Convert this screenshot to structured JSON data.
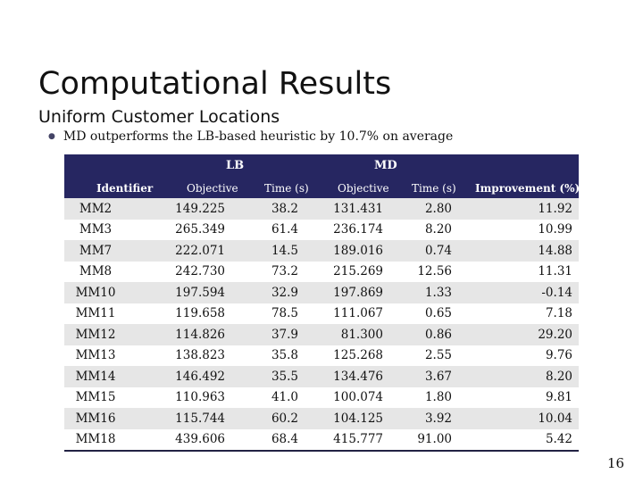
{
  "slide": {
    "title": "Computational Results",
    "subtitle": "Uniform Customer Locations",
    "bullet": "MD outperforms the LB-based heuristic by 10.7% on average",
    "page_number": "16"
  },
  "table": {
    "group_headers": {
      "lb": "LB",
      "md": "MD"
    },
    "columns": {
      "identifier": "Identifier",
      "lb_objective": "Objective",
      "lb_time": "Time (s)",
      "md_objective": "Objective",
      "md_time": "Time (s)",
      "improvement": "Improvement (%)"
    },
    "rows": [
      {
        "id": "MM2",
        "lb_obj": "149.225",
        "lb_time": "38.2",
        "md_obj": "131.431",
        "md_time": "2.80",
        "imp": "11.92"
      },
      {
        "id": "MM3",
        "lb_obj": "265.349",
        "lb_time": "61.4",
        "md_obj": "236.174",
        "md_time": "8.20",
        "imp": "10.99"
      },
      {
        "id": "MM7",
        "lb_obj": "222.071",
        "lb_time": "14.5",
        "md_obj": "189.016",
        "md_time": "0.74",
        "imp": "14.88"
      },
      {
        "id": "MM8",
        "lb_obj": "242.730",
        "lb_time": "73.2",
        "md_obj": "215.269",
        "md_time": "12.56",
        "imp": "11.31"
      },
      {
        "id": "MM10",
        "lb_obj": "197.594",
        "lb_time": "32.9",
        "md_obj": "197.869",
        "md_time": "1.33",
        "imp": "-0.14"
      },
      {
        "id": "MM11",
        "lb_obj": "119.658",
        "lb_time": "78.5",
        "md_obj": "111.067",
        "md_time": "0.65",
        "imp": "7.18"
      },
      {
        "id": "MM12",
        "lb_obj": "114.826",
        "lb_time": "37.9",
        "md_obj": "81.300",
        "md_time": "0.86",
        "imp": "29.20"
      },
      {
        "id": "MM13",
        "lb_obj": "138.823",
        "lb_time": "35.8",
        "md_obj": "125.268",
        "md_time": "2.55",
        "imp": "9.76"
      },
      {
        "id": "MM14",
        "lb_obj": "146.492",
        "lb_time": "35.5",
        "md_obj": "134.476",
        "md_time": "3.67",
        "imp": "8.20"
      },
      {
        "id": "MM15",
        "lb_obj": "110.963",
        "lb_time": "41.0",
        "md_obj": "100.074",
        "md_time": "1.80",
        "imp": "9.81"
      },
      {
        "id": "MM16",
        "lb_obj": "115.744",
        "lb_time": "60.2",
        "md_obj": "104.125",
        "md_time": "3.92",
        "imp": "10.04"
      },
      {
        "id": "MM18",
        "lb_obj": "439.606",
        "lb_time": "68.4",
        "md_obj": "415.777",
        "md_time": "91.00",
        "imp": "5.42"
      }
    ]
  },
  "colors": {
    "header_bg": "#262661",
    "stripe_bg": "#e6e6e6"
  }
}
